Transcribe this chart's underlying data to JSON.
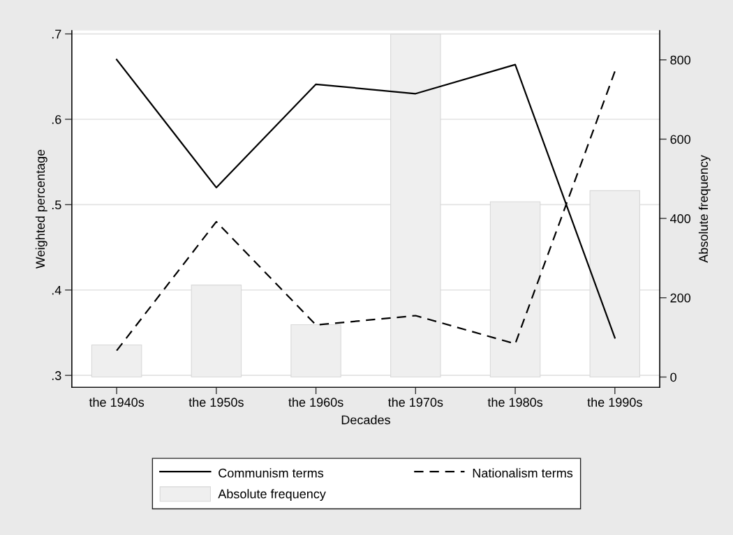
{
  "chart_data": {
    "type": "line",
    "xlabel": "Decades",
    "ylabel": "Weighted percentage",
    "y2label": "Absolute frequency",
    "categories": [
      "the 1940s",
      "the 1950s",
      "the 1960s",
      "the 1970s",
      "the 1980s",
      "the 1990s"
    ],
    "series": [
      {
        "name": "Communism terms",
        "color": "#000000",
        "line_style": "solid",
        "values": [
          0.67,
          0.52,
          0.641,
          0.63,
          0.664,
          0.344
        ]
      },
      {
        "name": "Nationalism terms",
        "color": "#000000",
        "line_style": "dashed",
        "values": [
          0.329,
          0.48,
          0.359,
          0.37,
          0.337,
          0.656
        ]
      },
      {
        "name": "Absolute frequency",
        "type": "bar",
        "axis": "y2",
        "color": "#efefef",
        "values": [
          81,
          232,
          132,
          865,
          442,
          470
        ]
      }
    ],
    "ylim": [
      0.286,
      0.704
    ],
    "yticks": [
      {
        "value": 0.3,
        "label": ".3"
      },
      {
        "value": 0.4,
        "label": ".4"
      },
      {
        "value": 0.5,
        "label": ".5"
      },
      {
        "value": 0.6,
        "label": ".6"
      },
      {
        "value": 0.7,
        "label": ".7"
      }
    ],
    "y2lim": [
      -26,
      874
    ],
    "y2ticks": [
      0,
      200,
      400,
      600,
      800
    ],
    "grid": "y",
    "legend": "bottom"
  }
}
